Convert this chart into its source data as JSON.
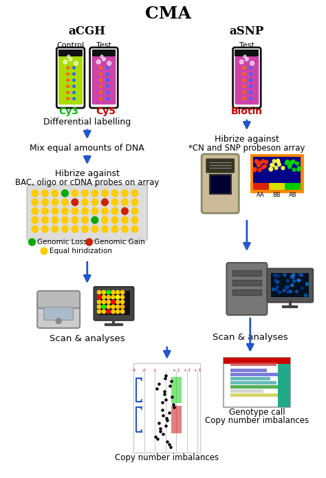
{
  "title": "CMA",
  "left_header": "aCGH",
  "right_header": "aSNP",
  "cy3_color": "#00bb00",
  "cy5_color": "#cc0000",
  "biotin_color": "#cc0000",
  "tube_green_fill": "#aadd00",
  "tube_magenta_fill": "#cc44aa",
  "arrow_color": "#2255cc",
  "step1_left": "Differential labelling",
  "step2_left": "Mix equal amounts of DNA",
  "step3a_left": "Hibrize against",
  "step3b_left": "BAC, oligo or cDNA probes on array",
  "step1a_right": "Hibrize against",
  "step1b_right": "*CN and SNP probeson array",
  "scan_left": "Scan & analyses",
  "scan_right": "Scan & analyses",
  "copy_left": "Copy number imbalances",
  "copy_right_line1": "Genotype call",
  "copy_right_line2": "Copy number imbalances",
  "legend_green": "Genomic Loss",
  "legend_red": "Genomic Gain",
  "legend_yellow": "Equal hiridization",
  "dot_yellow": "#ffcc00",
  "dot_green": "#00aa00",
  "dot_red": "#cc2200",
  "bg_color": "#ffffff",
  "fig_width": 4.74,
  "fig_height": 6.95,
  "dpi": 100
}
